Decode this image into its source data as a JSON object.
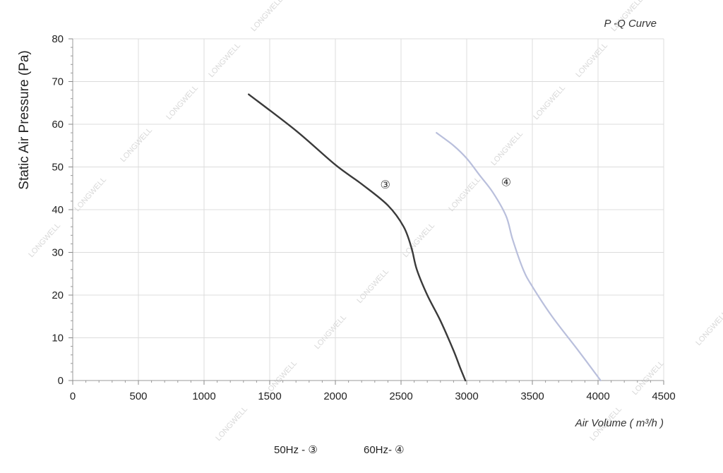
{
  "chart_data": {
    "type": "line",
    "title": "P -Q Curve",
    "xlabel": "Air Volume ( m³/h )",
    "ylabel": "Static Air Pressure  (Pa)",
    "xlim": [
      0,
      4500
    ],
    "ylim": [
      0,
      80
    ],
    "x_ticks": [
      0,
      500,
      1000,
      1500,
      2000,
      2500,
      3000,
      3500,
      4000,
      4500
    ],
    "y_ticks": [
      0,
      10,
      20,
      30,
      40,
      50,
      60,
      70,
      80
    ],
    "grid": true,
    "series": [
      {
        "name": "③",
        "color": "#3a3a3a",
        "x": [
          1340,
          1700,
          2000,
          2200,
          2400,
          2520,
          2580,
          2620,
          2700,
          2800,
          2900,
          2950,
          2990
        ],
        "y": [
          67,
          58.5,
          50.5,
          46,
          41,
          36,
          31,
          26,
          20,
          14,
          7,
          3,
          0
        ]
      },
      {
        "name": "④",
        "color": "#b9bfdc",
        "x": [
          2770,
          2900,
          3000,
          3100,
          3200,
          3300,
          3350,
          3430,
          3500,
          3650,
          3850,
          4020
        ],
        "y": [
          58,
          55,
          52,
          48,
          44,
          38.5,
          33,
          26,
          22,
          15,
          7,
          0
        ]
      }
    ],
    "curve_labels": [
      {
        "text": "③",
        "x": 2380,
        "y": 45
      },
      {
        "text": "④",
        "x": 3300,
        "y": 45.5
      }
    ],
    "legend": {
      "position": "bottom-center",
      "items": [
        {
          "label": "50Hz - ③"
        },
        {
          "label": "60Hz- ④"
        }
      ]
    },
    "watermark": "LONGWELL"
  }
}
